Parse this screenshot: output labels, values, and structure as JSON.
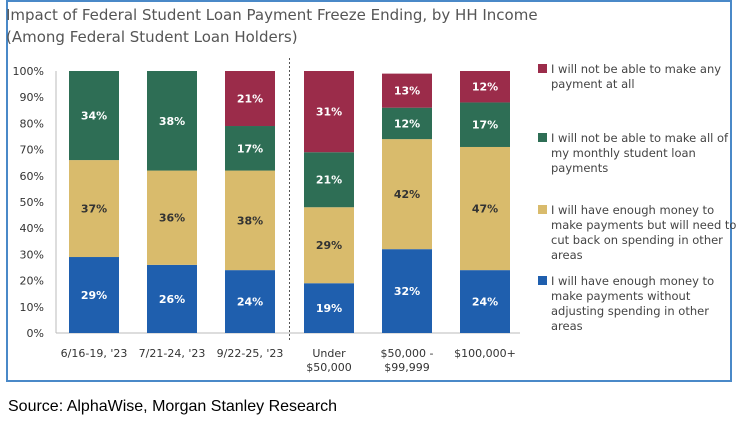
{
  "chart_data": {
    "type": "bar",
    "stacked": true,
    "title": "Impact of Federal Student Loan Payment Freeze Ending, by HH Income (Among Federal Student Loan Holders)",
    "categories": [
      [
        "6/16-19, '23"
      ],
      [
        "7/21-24, '23"
      ],
      [
        "9/22-25, '23"
      ],
      [
        "Under",
        "$50,000"
      ],
      [
        "$50,000 -",
        "$99,999"
      ],
      [
        "$100,000+"
      ]
    ],
    "ylim": [
      0,
      100
    ],
    "yticks": [
      "0%",
      "10%",
      "20%",
      "30%",
      "40%",
      "50%",
      "60%",
      "70%",
      "80%",
      "90%",
      "100%"
    ],
    "divider_after_category": 2,
    "legend_position": "right",
    "series": [
      {
        "name": "I will have enough money to make payments without adjusting spending in other areas",
        "legend_lines": [
          "I will have enough money to",
          "make payments without",
          "adjusting spending in other",
          "areas"
        ],
        "color": "#1f5fae",
        "label_color": "#ffffff",
        "values": [
          29,
          26,
          24,
          19,
          32,
          24
        ],
        "labels": [
          "29%",
          "26%",
          "24%",
          "19%",
          "32%",
          "24%"
        ]
      },
      {
        "name": "I will have enough money to make payments but will need to cut back on spending in other areas",
        "legend_lines": [
          "I will have enough money to",
          "make payments but will need to",
          "cut back on spending in other",
          "areas"
        ],
        "color": "#d9bb6c",
        "label_color": "#333333",
        "values": [
          37,
          36,
          38,
          29,
          42,
          47
        ],
        "labels": [
          "37%",
          "36%",
          "38%",
          "29%",
          "42%",
          "47%"
        ]
      },
      {
        "name": "I will not be able to make all of my monthly student loan payments",
        "legend_lines": [
          "I will not be able to make all of",
          "my monthly student loan",
          "payments"
        ],
        "color": "#2e6e55",
        "label_color": "#ffffff",
        "values": [
          34,
          38,
          17,
          21,
          12,
          17
        ],
        "labels": [
          "34%",
          "38%",
          "17%",
          "21%",
          "12%",
          "17%"
        ]
      },
      {
        "name": "I will not be able to make any payment at all",
        "legend_lines": [
          "I will not be able to make any",
          "payment at all"
        ],
        "color": "#9b2c4a",
        "label_color": "#ffffff",
        "values": [
          0,
          0,
          21,
          31,
          13,
          12
        ],
        "labels": [
          "",
          "",
          "21%",
          "31%",
          "13%",
          "12%"
        ]
      }
    ]
  },
  "source": "Source: AlphaWise, Morgan Stanley Research"
}
